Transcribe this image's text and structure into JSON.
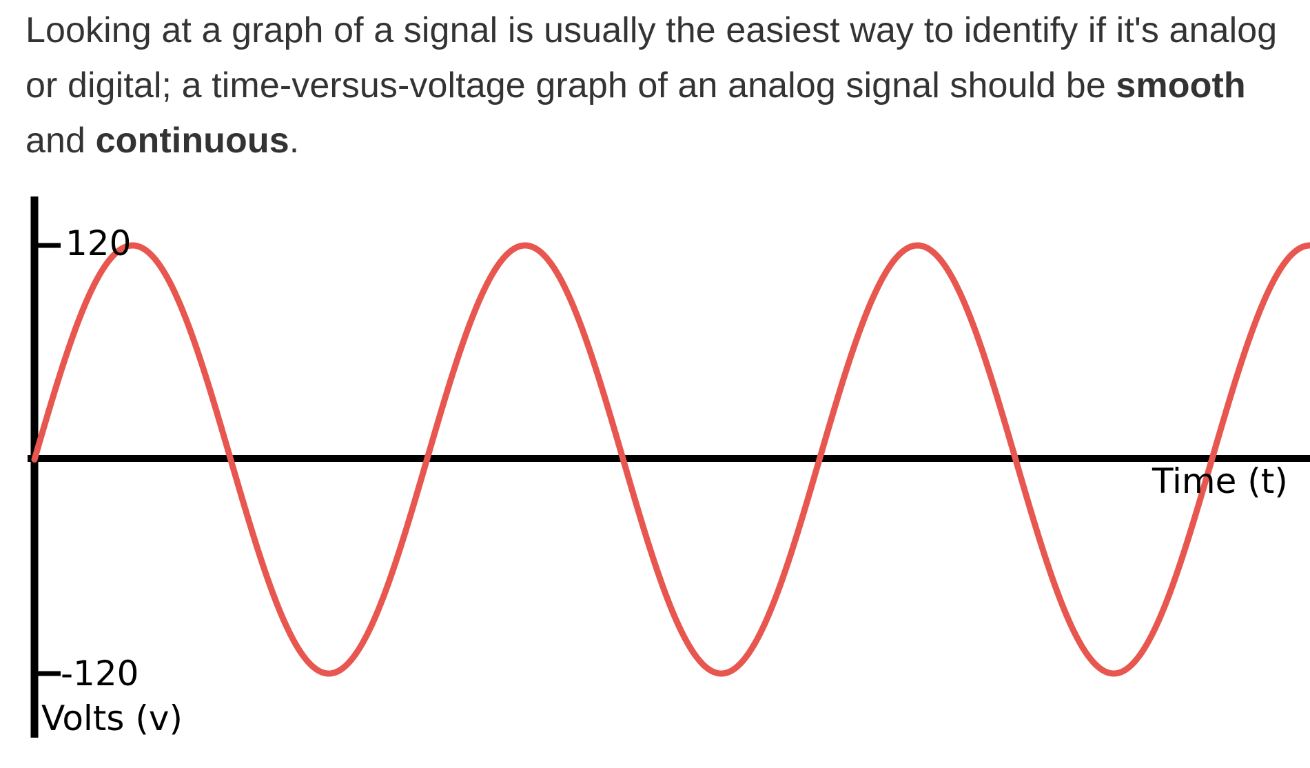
{
  "paragraph": {
    "part1": "Looking at a graph of a signal is usually the easiest way to identify if it's analog or digital; a time-versus-voltage graph of an analog signal should be ",
    "bold1": "smooth",
    "part2": " and ",
    "bold2": "continuous",
    "part3": "."
  },
  "chart_data": {
    "type": "line",
    "title": "",
    "xlabel": "Time (t)",
    "ylabel": "Volts (v)",
    "ytick_labels": [
      "120",
      "-120"
    ],
    "ylim": [
      -120,
      120
    ],
    "grid": false,
    "legend": "none",
    "series": [
      {
        "color": "#e8574f",
        "shape": "sine",
        "amplitude": 120,
        "cycles_shown": 3.25,
        "phase_start": 0
      }
    ]
  }
}
